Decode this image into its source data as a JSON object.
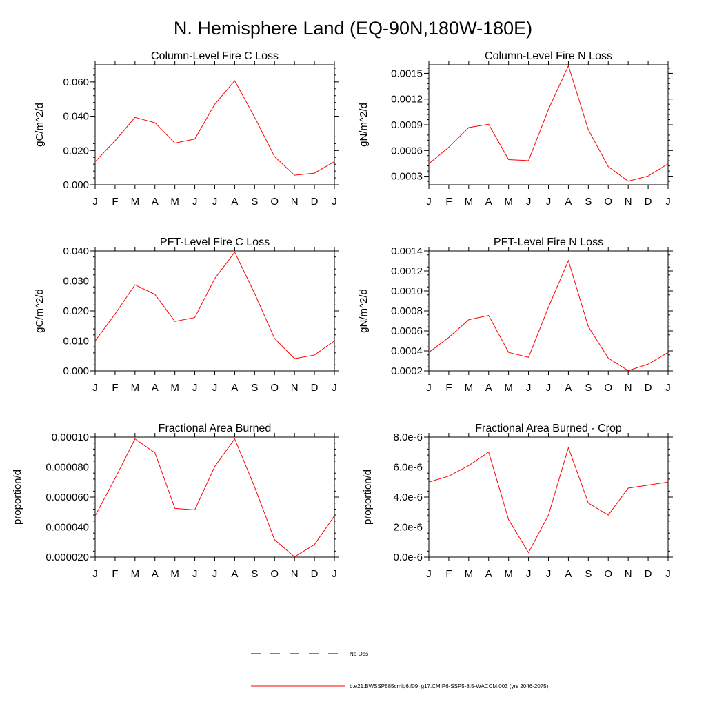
{
  "figure": {
    "title": "N. Hemisphere Land (EQ-90N,180W-180E)"
  },
  "legend": {
    "items": [
      {
        "label": "No Obs",
        "color": "#000000",
        "style": "dashed"
      },
      {
        "label": "b.e21.BWSSP585cmip6.f09_g17.CMIP6-SSP5-8.5-WACCM.003 (yrs 2046-2075)",
        "color": "#ff0000",
        "style": "solid"
      }
    ]
  },
  "chart_data": [
    {
      "type": "line",
      "title": "Column-Level Fire C Loss",
      "xlabel": "",
      "ylabel": "gC/m^2/d",
      "categories": [
        "J",
        "F",
        "M",
        "A",
        "M",
        "J",
        "J",
        "A",
        "S",
        "O",
        "N",
        "D",
        "J"
      ],
      "ylim": [
        0.0,
        0.07
      ],
      "yticks": [
        0.0,
        0.02,
        0.04,
        0.06
      ],
      "ytick_labels": [
        "0.000",
        "0.020",
        "0.040",
        "0.060"
      ],
      "series": [
        {
          "name": "b.e21.BWSSP585cmip6.f09_g17.CMIP6-SSP5-8.5-WACCM.003 (yrs 2046-2075)",
          "color": "#ff0000",
          "values": [
            0.0135,
            0.0257,
            0.0393,
            0.0362,
            0.0243,
            0.0267,
            0.047,
            0.0607,
            0.0394,
            0.0164,
            0.0056,
            0.0068,
            0.0135
          ]
        }
      ]
    },
    {
      "type": "line",
      "title": "Column-Level Fire N Loss",
      "xlabel": "",
      "ylabel": "gN/m^2/d",
      "categories": [
        "J",
        "F",
        "M",
        "A",
        "M",
        "J",
        "J",
        "A",
        "S",
        "O",
        "N",
        "D",
        "J"
      ],
      "ylim": [
        0.0002,
        0.0016
      ],
      "yticks": [
        0.0003,
        0.0006,
        0.0009,
        0.0012,
        0.0015
      ],
      "ytick_labels": [
        "0.0003",
        "0.0006",
        "0.0009",
        "0.0012",
        "0.0015"
      ],
      "series": [
        {
          "name": "b.e21.BWSSP585cmip6.f09_g17.CMIP6-SSP5-8.5-WACCM.003 (yrs 2046-2075)",
          "color": "#ff0000",
          "values": [
            0.000445,
            0.000638,
            0.000868,
            0.000906,
            0.000494,
            0.000482,
            0.00108,
            0.00159,
            0.000842,
            0.000412,
            0.000242,
            0.000302,
            0.000445
          ]
        }
      ]
    },
    {
      "type": "line",
      "title": "PFT-Level Fire C Loss",
      "xlabel": "",
      "ylabel": "gC/m^2/d",
      "categories": [
        "J",
        "F",
        "M",
        "A",
        "M",
        "J",
        "J",
        "A",
        "S",
        "O",
        "N",
        "D",
        "J"
      ],
      "ylim": [
        0.0,
        0.04
      ],
      "yticks": [
        0.0,
        0.01,
        0.02,
        0.03,
        0.04
      ],
      "ytick_labels": [
        "0.000",
        "0.010",
        "0.020",
        "0.030",
        "0.040"
      ],
      "series": [
        {
          "name": "b.e21.BWSSP585cmip6.f09_g17.CMIP6-SSP5-8.5-WACCM.003 (yrs 2046-2075)",
          "color": "#ff0000",
          "values": [
            0.01,
            0.019,
            0.0287,
            0.0255,
            0.0165,
            0.0178,
            0.0308,
            0.0396,
            0.0258,
            0.0108,
            0.0041,
            0.0053,
            0.01
          ]
        }
      ]
    },
    {
      "type": "line",
      "title": "PFT-Level Fire N Loss",
      "xlabel": "",
      "ylabel": "gN/m^2/d",
      "categories": [
        "J",
        "F",
        "M",
        "A",
        "M",
        "J",
        "J",
        "A",
        "S",
        "O",
        "N",
        "D",
        "J"
      ],
      "ylim": [
        0.0002,
        0.0014
      ],
      "yticks": [
        0.0002,
        0.0004,
        0.0006,
        0.0008,
        0.001,
        0.0012,
        0.0014
      ],
      "ytick_labels": [
        "0.0002",
        "0.0004",
        "0.0006",
        "0.0008",
        "0.0010",
        "0.0012",
        "0.0014"
      ],
      "series": [
        {
          "name": "b.e21.BWSSP585cmip6.f09_g17.CMIP6-SSP5-8.5-WACCM.003 (yrs 2046-2075)",
          "color": "#ff0000",
          "values": [
            0.000385,
            0.000535,
            0.000712,
            0.000755,
            0.000385,
            0.000336,
            0.000838,
            0.001304,
            0.000643,
            0.000328,
            0.000203,
            0.000268,
            0.000385
          ]
        }
      ]
    },
    {
      "type": "line",
      "title": "Fractional Area Burned",
      "xlabel": "",
      "ylabel": "proportion/d",
      "categories": [
        "J",
        "F",
        "M",
        "A",
        "M",
        "J",
        "J",
        "A",
        "S",
        "O",
        "N",
        "D",
        "J"
      ],
      "ylim": [
        2e-05,
        0.0001
      ],
      "yticks": [
        2e-05,
        4e-05,
        6e-05,
        8e-05,
        0.0001
      ],
      "ytick_labels": [
        "0.000020",
        "0.000040",
        "0.000060",
        "0.000080",
        "0.00010"
      ],
      "series": [
        {
          "name": "b.e21.BWSSP585cmip6.f09_g17.CMIP6-SSP5-8.5-WACCM.003 (yrs 2046-2075)",
          "color": "#ff0000",
          "values": [
            4.75e-05,
            7.25e-05,
            9.88e-05,
            8.95e-05,
            5.25e-05,
            5.15e-05,
            8.04e-05,
            9.88e-05,
            6.67e-05,
            3.16e-05,
            2.02e-05,
            2.83e-05,
            4.75e-05
          ]
        }
      ]
    },
    {
      "type": "line",
      "title": "Fractional Area Burned - Crop",
      "xlabel": "",
      "ylabel": "proportion/d",
      "categories": [
        "J",
        "F",
        "M",
        "A",
        "M",
        "J",
        "J",
        "A",
        "S",
        "O",
        "N",
        "D",
        "J"
      ],
      "ylim": [
        0.0,
        8e-06
      ],
      "yticks": [
        0.0,
        2e-06,
        4e-06,
        6e-06,
        8e-06
      ],
      "ytick_labels": [
        "0.0e-6",
        "2.0e-6",
        "4.0e-6",
        "6.0e-6",
        "8.0e-6"
      ],
      "series": [
        {
          "name": "b.e21.BWSSP585cmip6.f09_g17.CMIP6-SSP5-8.5-WACCM.003 (yrs 2046-2075)",
          "color": "#ff0000",
          "values": [
            5e-06,
            5.4e-06,
            6.1e-06,
            7e-06,
            2.5e-06,
            3e-07,
            2.8e-06,
            7.3e-06,
            3.6e-06,
            2.8e-06,
            4.6e-06,
            4.8e-06,
            5e-06
          ]
        }
      ]
    }
  ]
}
